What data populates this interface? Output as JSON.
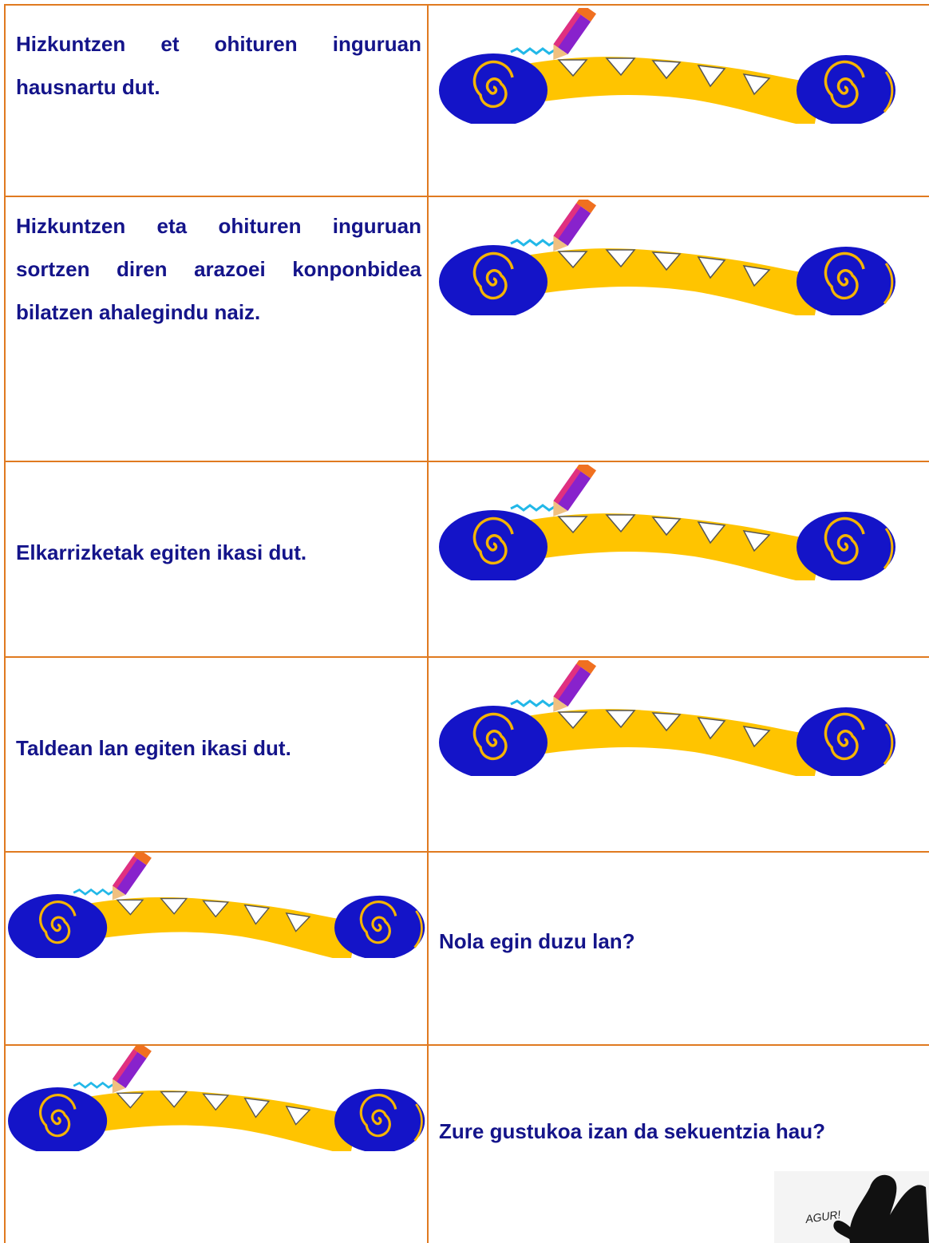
{
  "table": {
    "rows": [
      {
        "text": "Hizkuntzen et ohituren inguruan hausnartu dut.",
        "side": "left"
      },
      {
        "text": "Hizkuntzen eta ohituren inguruan sortzen diren arazoei konponbidea bilatzen ahalegindu naiz.",
        "side": "left"
      },
      {
        "text": "Elkarrizketak egiten ikasi dut.",
        "side": "left"
      },
      {
        "text": "Taldean lan egiten ikasi dut.",
        "side": "left"
      },
      {
        "text": "Nola egin duzu lan?",
        "side": "right"
      },
      {
        "text": "Zure gustukoa izan da sekuentzia hau?",
        "side": "right"
      }
    ]
  },
  "agur_image": {
    "label": "AGUR!"
  }
}
